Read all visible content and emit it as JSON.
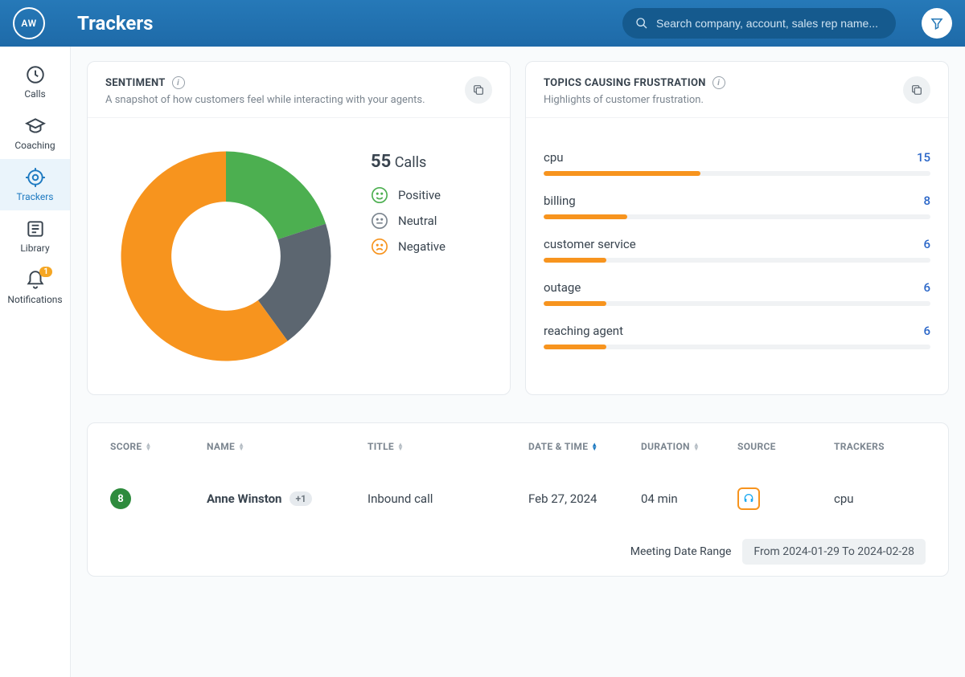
{
  "header": {
    "avatar_initials": "AW",
    "title": "Trackers",
    "search_placeholder": "Search company, account, sales rep name..."
  },
  "sidebar": {
    "items": [
      {
        "key": "calls",
        "label": "Calls"
      },
      {
        "key": "coaching",
        "label": "Coaching"
      },
      {
        "key": "trackers",
        "label": "Trackers"
      },
      {
        "key": "library",
        "label": "Library"
      },
      {
        "key": "notifications",
        "label": "Notifications",
        "badge": "1"
      }
    ],
    "active": "trackers"
  },
  "sentiment_card": {
    "title": "SENTIMENT",
    "subtitle": "A snapshot of how customers feel while interacting with your agents.",
    "calls_count": "55",
    "calls_label": "Calls",
    "legend": {
      "positive": "Positive",
      "neutral": "Neutral",
      "negative": "Negative"
    },
    "donut": {
      "type": "donut",
      "inner_radius_ratio": 0.52,
      "segments": [
        {
          "key": "positive",
          "value": 20,
          "color": "#4caf50"
        },
        {
          "key": "neutral",
          "value": 20,
          "color": "#5c6670"
        },
        {
          "key": "negative",
          "value": 60,
          "color": "#f7941e"
        }
      ],
      "start_angle_deg": 0
    },
    "face_colors": {
      "positive_stroke": "#4caf50",
      "neutral_stroke": "#7b858f",
      "negative_stroke": "#f7941e"
    }
  },
  "topics_card": {
    "title": "TOPICS CAUSING FRUSTRATION",
    "subtitle": "Highlights of customer frustration.",
    "bar_color": "#f7941e",
    "track_color": "#f0f2f4",
    "value_color": "#2a66c8",
    "max_value": 37,
    "topics": [
      {
        "label": "cpu",
        "value": 15
      },
      {
        "label": "billing",
        "value": 8
      },
      {
        "label": "customer service",
        "value": 6
      },
      {
        "label": "outage",
        "value": 6
      },
      {
        "label": "reaching agent",
        "value": 6
      }
    ]
  },
  "table": {
    "columns": {
      "score": "SCORE",
      "name": "NAME",
      "title": "TITLE",
      "date": "DATE & TIME",
      "duration": "DURATION",
      "source": "SOURCE",
      "trackers": "TRACKERS"
    },
    "rows": [
      {
        "score": "8",
        "name": "Anne Winston",
        "extra": "+1",
        "title": "Inbound call",
        "date": "Feb 27, 2024",
        "duration": "04 min",
        "tracker": "cpu"
      }
    ],
    "date_range_label": "Meeting Date Range",
    "date_range_value": "From 2024-01-29 To 2024-02-28"
  },
  "colors": {
    "header_bg": "#2679b8",
    "accent": "#1e7ac1",
    "orange": "#f7941e",
    "green": "#4caf50",
    "gray": "#5c6670"
  }
}
